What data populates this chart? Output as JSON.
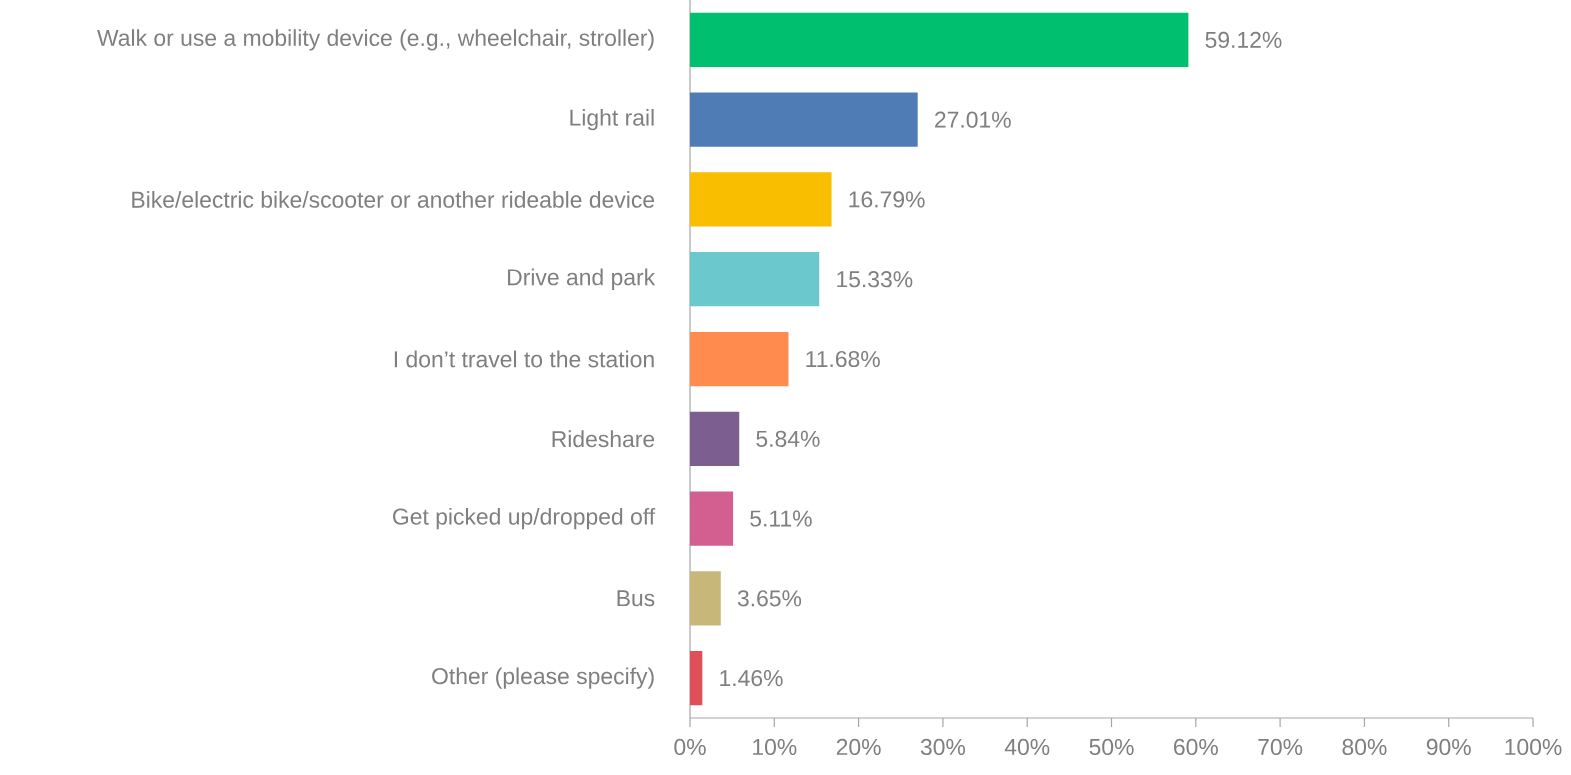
{
  "chart_data": {
    "type": "bar",
    "orientation": "horizontal",
    "categories": [
      "Walk or use a mobility device (e.g., wheelchair, stroller)",
      "Light rail",
      "Bike/electric bike/scooter or another rideable device",
      "Drive and park",
      "I don’t travel to the station",
      "Rideshare",
      "Get picked up/dropped off",
      "Bus",
      "Other (please specify)"
    ],
    "values": [
      59.12,
      27.01,
      16.79,
      15.33,
      11.68,
      5.84,
      5.11,
      3.65,
      1.46
    ],
    "value_labels": [
      "59.12%",
      "27.01%",
      "16.79%",
      "15.33%",
      "11.68%",
      "5.84%",
      "5.11%",
      "3.65%",
      "1.46%"
    ],
    "colors": [
      "#00bf6f",
      "#507cb6",
      "#f9be00",
      "#6bc8cd",
      "#ff8b4f",
      "#7d5e90",
      "#d25f90",
      "#c7b879",
      "#e04e58"
    ],
    "xlim": [
      0,
      100
    ],
    "xticks": [
      {
        "value": 0,
        "label": "0%"
      },
      {
        "value": 10,
        "label": "10%"
      },
      {
        "value": 20,
        "label": "20%"
      },
      {
        "value": 30,
        "label": "30%"
      },
      {
        "value": 40,
        "label": "40%"
      },
      {
        "value": 50,
        "label": "50%"
      },
      {
        "value": 60,
        "label": "60%"
      },
      {
        "value": 70,
        "label": "70%"
      },
      {
        "value": 80,
        "label": "80%"
      },
      {
        "value": 90,
        "label": "90%"
      },
      {
        "value": 100,
        "label": "100%"
      }
    ],
    "grid": false
  }
}
